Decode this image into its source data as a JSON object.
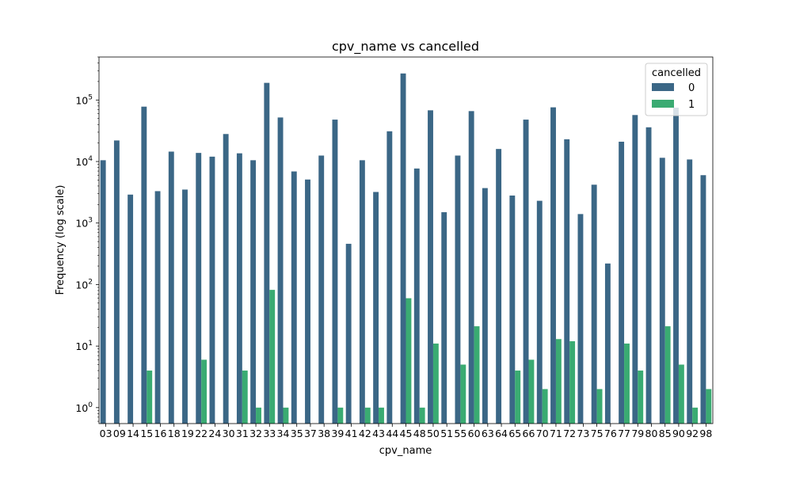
{
  "chart_data": {
    "type": "bar",
    "title": "cpv_name vs cancelled",
    "xlabel": "cpv_name",
    "ylabel": "Frequency (log scale)",
    "yscale": "log",
    "ylim": [
      0.55,
      500000
    ],
    "yticks": [
      {
        "value": 1,
        "base": "10",
        "exp": "0"
      },
      {
        "value": 10,
        "base": "10",
        "exp": "1"
      },
      {
        "value": 100,
        "base": "10",
        "exp": "2"
      },
      {
        "value": 1000,
        "base": "10",
        "exp": "3"
      },
      {
        "value": 10000,
        "base": "10",
        "exp": "4"
      },
      {
        "value": 100000,
        "base": "10",
        "exp": "5"
      }
    ],
    "categories": [
      "03",
      "09",
      "14",
      "15",
      "16",
      "18",
      "19",
      "22",
      "24",
      "30",
      "31",
      "32",
      "33",
      "34",
      "35",
      "37",
      "38",
      "39",
      "41",
      "42",
      "43",
      "44",
      "45",
      "48",
      "50",
      "51",
      "55",
      "60",
      "63",
      "64",
      "65",
      "66",
      "70",
      "71",
      "72",
      "73",
      "75",
      "76",
      "77",
      "79",
      "80",
      "85",
      "90",
      "92",
      "98"
    ],
    "series": [
      {
        "name": "0",
        "color": "#3b6786",
        "values": [
          10500,
          22000,
          2900,
          78000,
          3300,
          14500,
          3500,
          13800,
          12000,
          28000,
          13600,
          10500,
          190000,
          52000,
          6900,
          5100,
          12500,
          48000,
          460,
          10500,
          3200,
          31000,
          270000,
          7700,
          68000,
          1500,
          12500,
          66000,
          3700,
          16000,
          2800,
          48000,
          2300,
          76000,
          23000,
          1400,
          4200,
          220,
          21000,
          57000,
          36000,
          11500,
          75000,
          10800,
          6000
        ]
      },
      {
        "name": "1",
        "color": "#3aab72",
        "values": [
          null,
          null,
          null,
          4,
          null,
          null,
          null,
          6,
          null,
          null,
          4,
          1,
          82,
          1,
          null,
          null,
          null,
          1,
          null,
          1,
          1,
          null,
          60,
          1,
          11,
          null,
          5,
          21,
          null,
          null,
          4,
          6,
          2,
          13,
          12,
          null,
          2,
          null,
          11,
          4,
          null,
          21,
          5,
          1,
          2
        ]
      }
    ],
    "legend": {
      "title": "cancelled",
      "position": "top-right"
    }
  }
}
